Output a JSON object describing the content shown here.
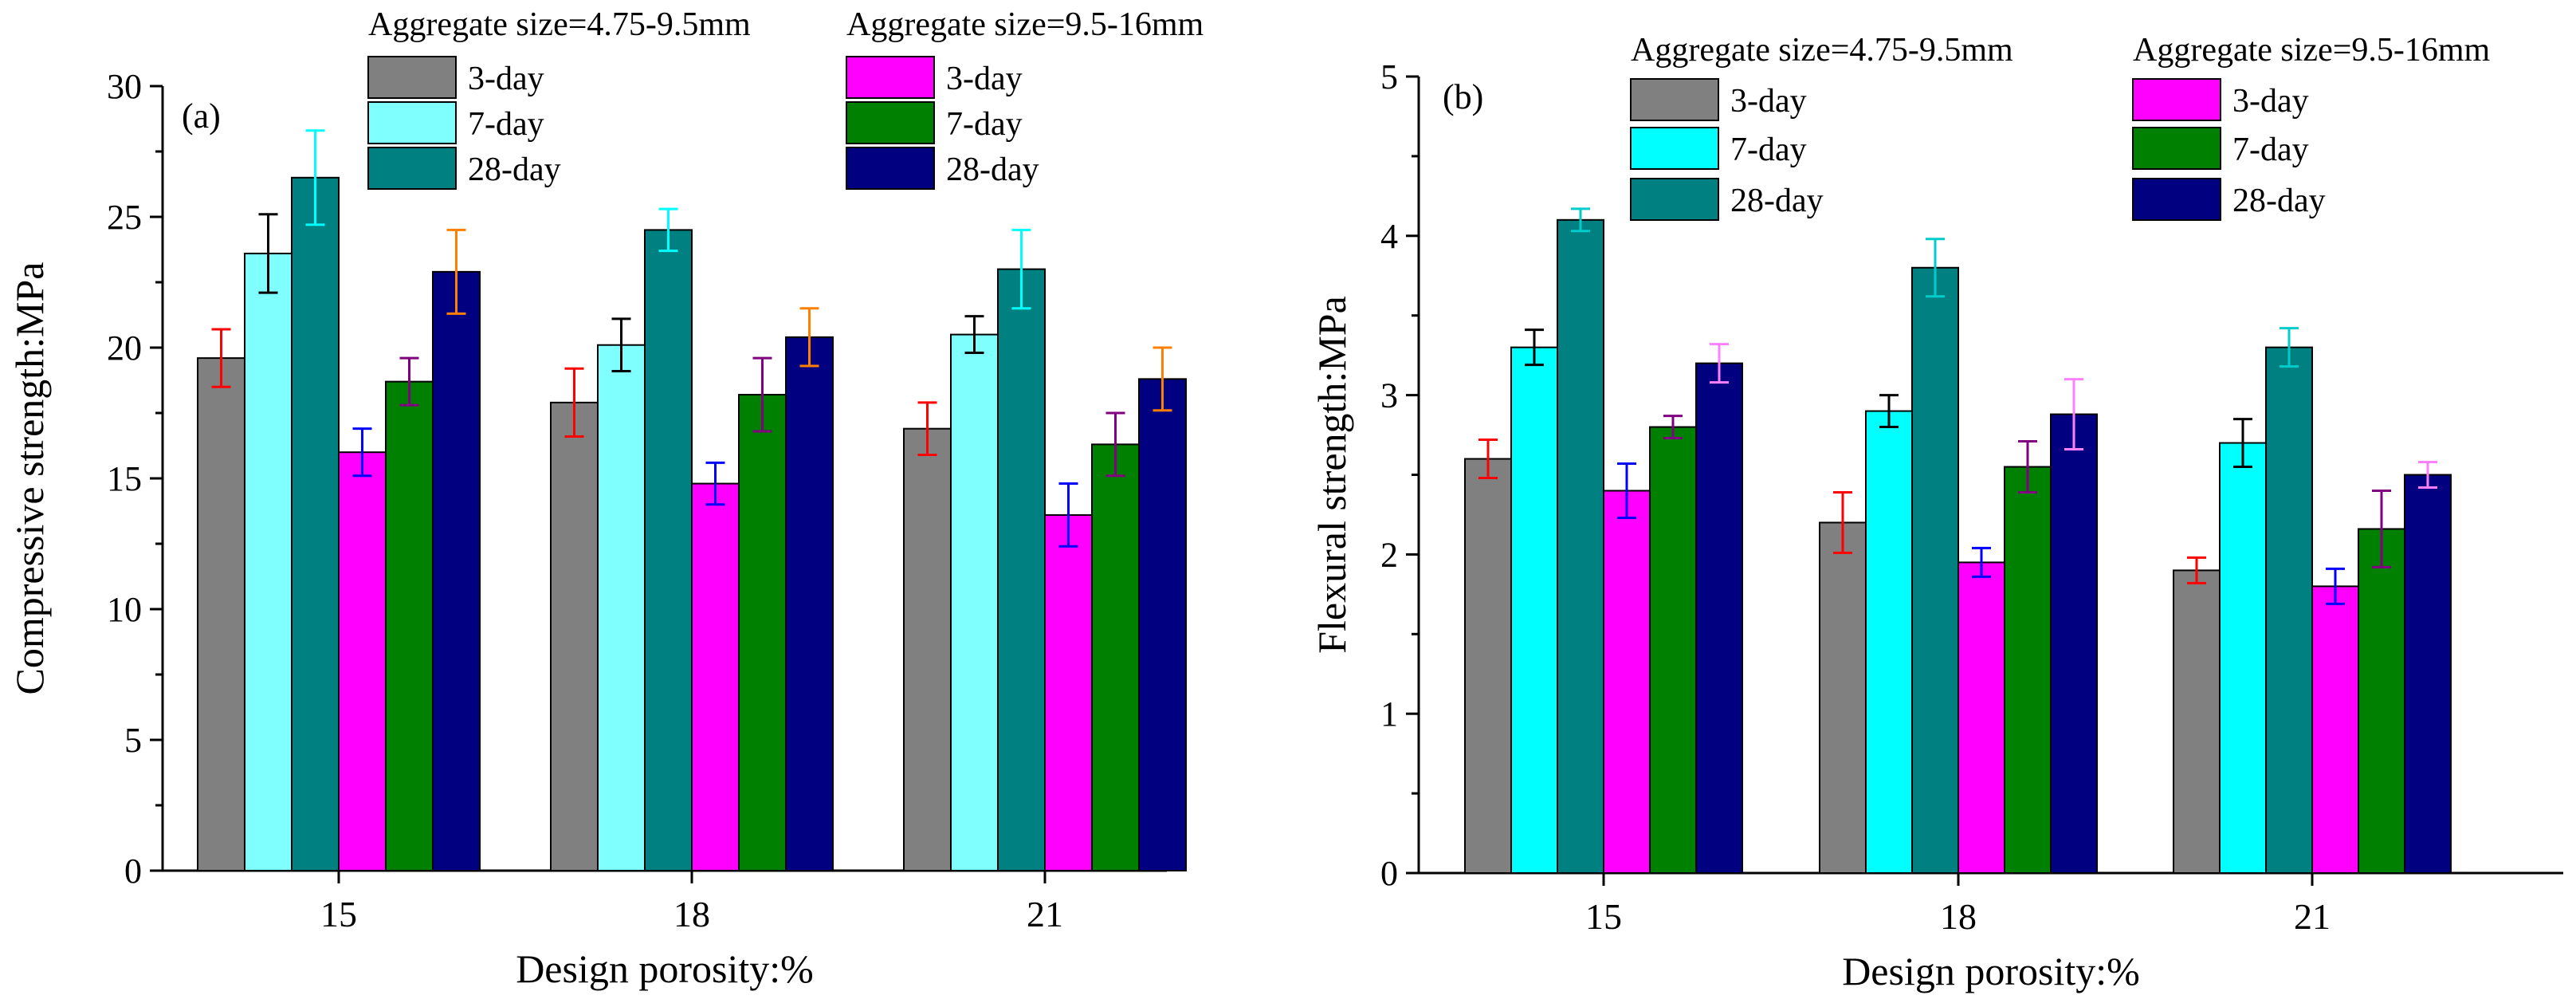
{
  "chart_data": [
    {
      "type": "bar",
      "panel_label": "(a)",
      "xlabel": "Design porosity:%",
      "ylabel": "Compressive strength:MPa",
      "ylim": [
        0,
        30
      ],
      "yticks": [
        0,
        5,
        10,
        15,
        20,
        25,
        30
      ],
      "categories": [
        "15",
        "18",
        "21"
      ],
      "legend_groups": [
        "Aggregate size=4.75-9.5mm",
        "Aggregate size=9.5-16mm"
      ],
      "series": [
        {
          "name": "3-day",
          "group": "Aggregate size=4.75-9.5mm",
          "color": "#808080",
          "err_color": "#ff0000",
          "values": [
            19.6,
            17.9,
            16.9
          ],
          "errors": [
            1.1,
            1.3,
            1.0
          ]
        },
        {
          "name": "7-day",
          "group": "Aggregate size=4.75-9.5mm",
          "color": "#80ffff",
          "err_color": "#000000",
          "values": [
            23.6,
            20.1,
            20.5
          ],
          "errors": [
            1.5,
            1.0,
            0.7
          ]
        },
        {
          "name": "28-day",
          "group": "Aggregate size=4.75-9.5mm",
          "color": "#008080",
          "err_color": "#00ffff",
          "values": [
            26.5,
            24.5,
            23.0
          ],
          "errors": [
            1.8,
            0.8,
            1.5
          ]
        },
        {
          "name": "3-day",
          "group": "Aggregate size=9.5-16mm",
          "color": "#ff00ff",
          "err_color": "#0000ff",
          "values": [
            16.0,
            14.8,
            13.6
          ],
          "errors": [
            0.9,
            0.8,
            1.2
          ]
        },
        {
          "name": "7-day",
          "group": "Aggregate size=9.5-16mm",
          "color": "#008000",
          "err_color": "#800080",
          "values": [
            18.7,
            18.2,
            16.3
          ],
          "errors": [
            0.9,
            1.4,
            1.2
          ]
        },
        {
          "name": "28-day",
          "group": "Aggregate size=9.5-16mm",
          "color": "#000080",
          "err_color": "#ff8000",
          "values": [
            22.9,
            20.4,
            18.8
          ],
          "errors": [
            1.6,
            1.1,
            1.2
          ]
        }
      ]
    },
    {
      "type": "bar",
      "panel_label": "(b)",
      "xlabel": "Design porosity:%",
      "ylabel": "Flexural strength:MPa",
      "ylim": [
        0,
        5
      ],
      "yticks": [
        0,
        1,
        2,
        3,
        4,
        5
      ],
      "categories": [
        "15",
        "18",
        "21"
      ],
      "legend_groups": [
        "Aggregate size=4.75-9.5mm",
        "Aggregate size=9.5-16mm"
      ],
      "series": [
        {
          "name": "3-day",
          "group": "Aggregate size=4.75-9.5mm",
          "color": "#808080",
          "err_color": "#ff0000",
          "values": [
            2.6,
            2.2,
            1.9
          ],
          "errors": [
            0.12,
            0.19,
            0.08
          ]
        },
        {
          "name": "7-day",
          "group": "Aggregate size=4.75-9.5mm",
          "color": "#00ffff",
          "err_color": "#000000",
          "values": [
            3.3,
            2.9,
            2.7
          ],
          "errors": [
            0.11,
            0.1,
            0.15
          ]
        },
        {
          "name": "28-day",
          "group": "Aggregate size=4.75-9.5mm",
          "color": "#008080",
          "err_color": "#00cccc",
          "values": [
            4.1,
            3.8,
            3.3
          ],
          "errors": [
            0.07,
            0.18,
            0.12
          ]
        },
        {
          "name": "3-day",
          "group": "Aggregate size=9.5-16mm",
          "color": "#ff00ff",
          "err_color": "#0000ff",
          "values": [
            2.4,
            1.95,
            1.8
          ],
          "errors": [
            0.17,
            0.09,
            0.11
          ]
        },
        {
          "name": "7-day",
          "group": "Aggregate size=9.5-16mm",
          "color": "#008000",
          "err_color": "#800080",
          "values": [
            2.8,
            2.55,
            2.16
          ],
          "errors": [
            0.07,
            0.16,
            0.24
          ]
        },
        {
          "name": "28-day",
          "group": "Aggregate size=9.5-16mm",
          "color": "#000080",
          "err_color": "#ff80ff",
          "values": [
            3.2,
            2.88,
            2.5
          ],
          "errors": [
            0.12,
            0.22,
            0.08
          ]
        }
      ]
    }
  ]
}
